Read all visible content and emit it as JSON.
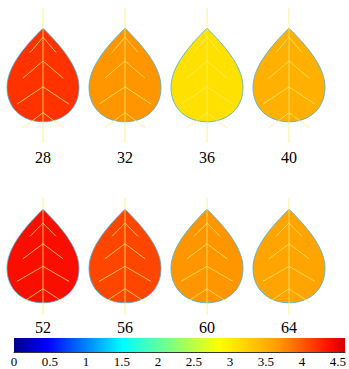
{
  "chart_data": {
    "type": "heatmap",
    "panels": [
      {
        "label": "28",
        "value": 4.2
      },
      {
        "label": "32",
        "value": 3.7
      },
      {
        "label": "36",
        "value": 3.1
      },
      {
        "label": "40",
        "value": 3.5
      },
      {
        "label": "52",
        "value": 4.4
      },
      {
        "label": "56",
        "value": 4.1
      },
      {
        "label": "60",
        "value": 3.7
      },
      {
        "label": "64",
        "value": 3.6
      }
    ],
    "colorbar": {
      "lim": [
        0,
        4.6
      ],
      "ticks": [
        0,
        0.5,
        1,
        1.5,
        2,
        2.5,
        3,
        3.5,
        4,
        4.5
      ]
    }
  }
}
